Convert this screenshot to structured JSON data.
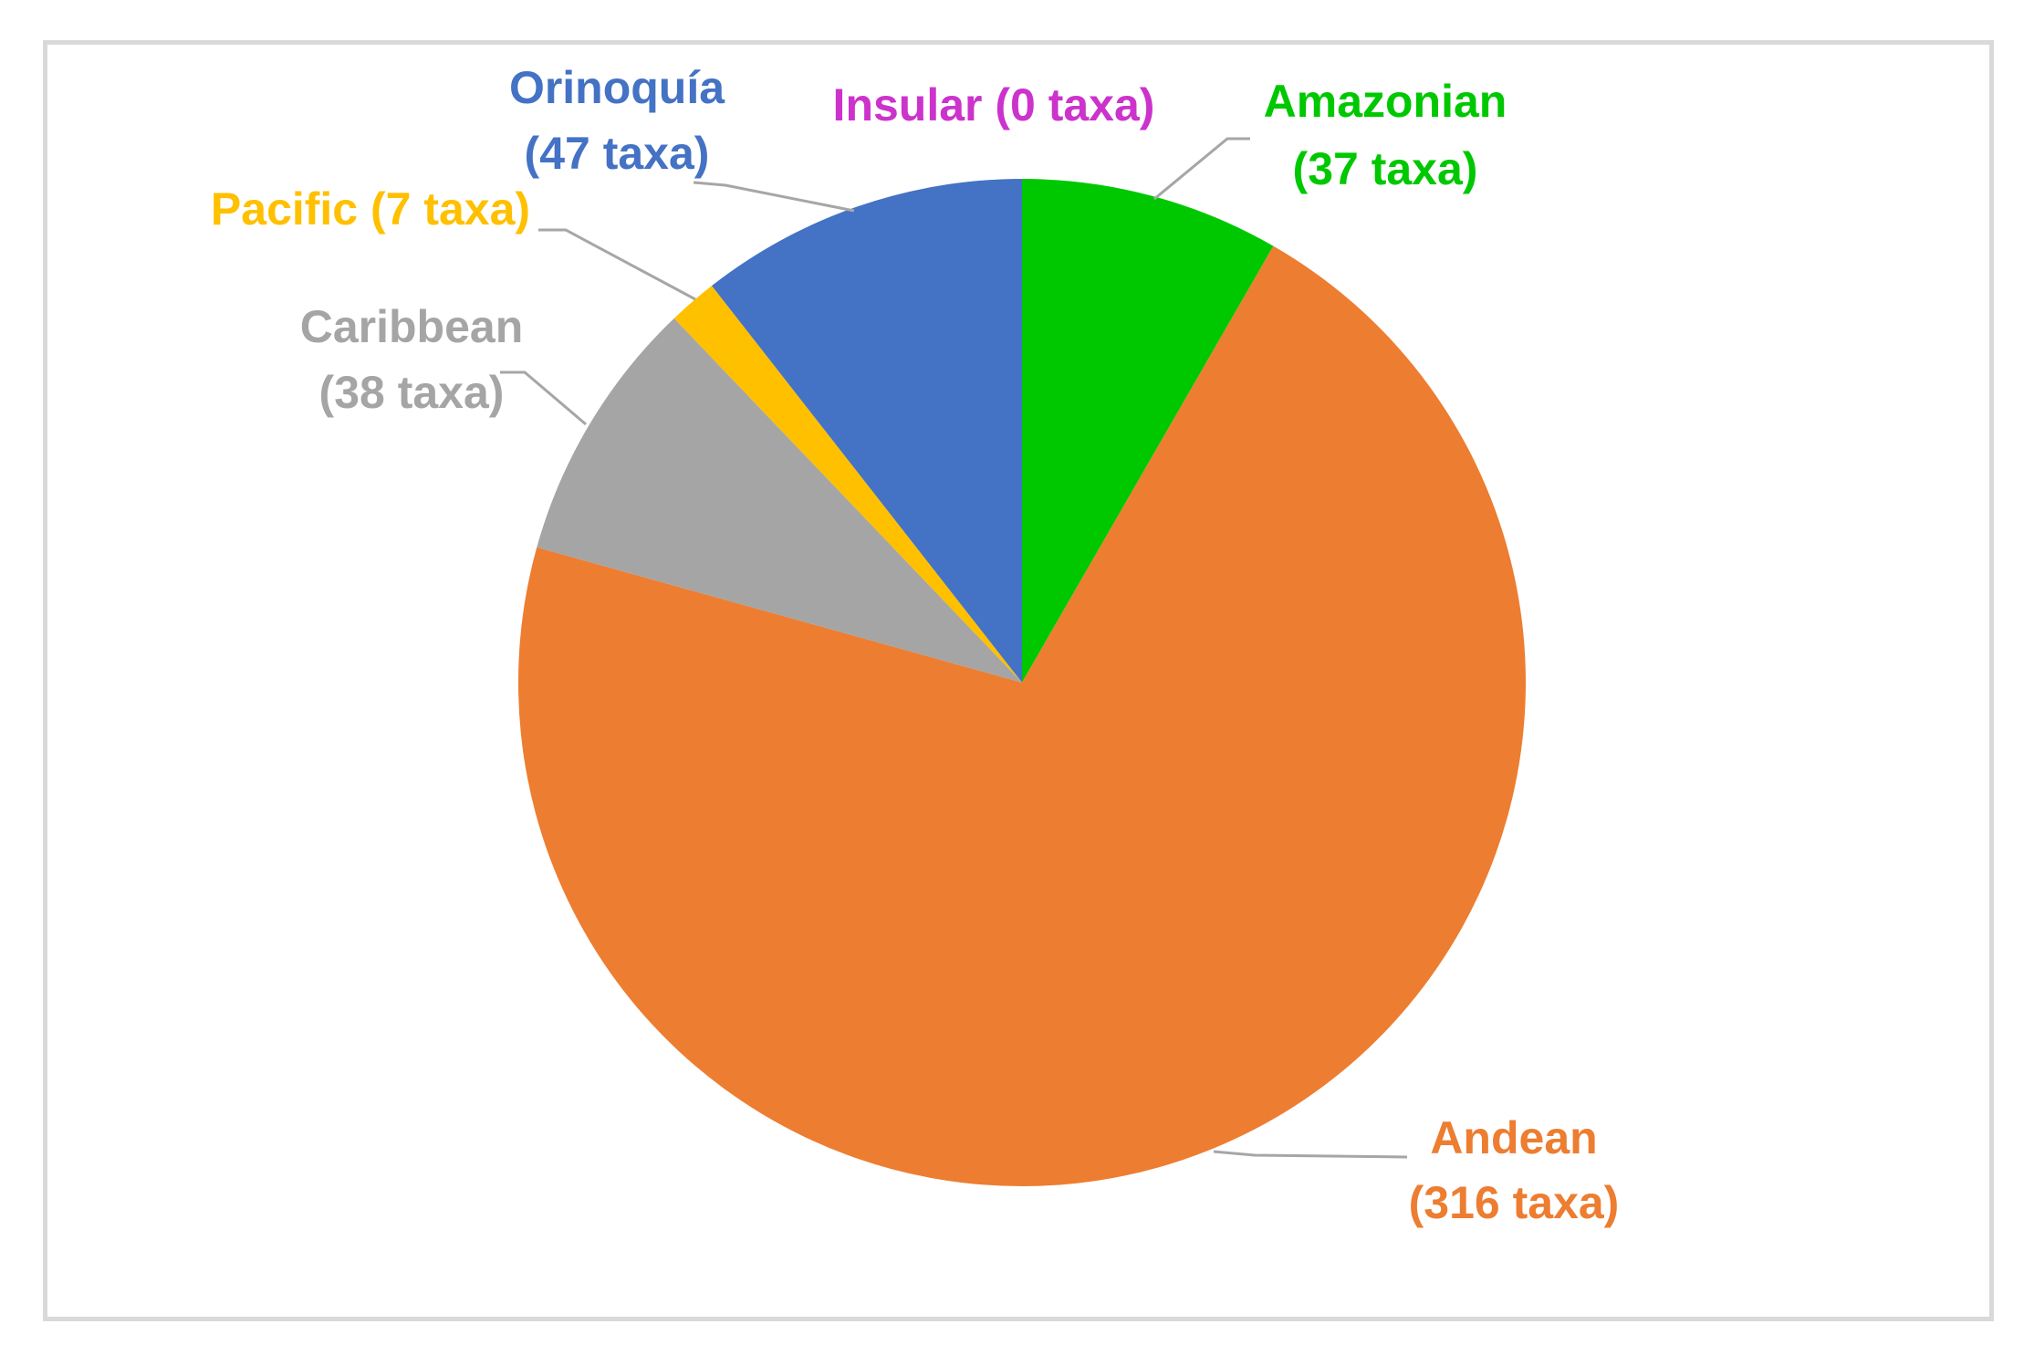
{
  "chart_data": {
    "type": "pie",
    "start_angle_deg": 0,
    "direction": "clockwise",
    "slices": [
      {
        "label": "Amazonian",
        "value_text": "(37 taxa)",
        "value": 37,
        "color": "#00c800"
      },
      {
        "label": "Andean",
        "value_text": "(316 taxa)",
        "value": 316,
        "color": "#ed7d31"
      },
      {
        "label": "Caribbean",
        "value_text": "(38 taxa)",
        "value": 38,
        "color": "#a5a5a5"
      },
      {
        "label": "Pacific",
        "value_text": "(7 taxa)",
        "value": 7,
        "color": "#ffc000"
      },
      {
        "label": "Orinoquía",
        "value_text": "(47 taxa)",
        "value": 47,
        "color": "#4472c4"
      },
      {
        "label": "Insular",
        "value_text": "(0 taxa)",
        "value": 0,
        "color": "#cc33cc"
      }
    ],
    "leader_line_color": "#a6a6a6",
    "border_color": "#d9d9d9"
  }
}
